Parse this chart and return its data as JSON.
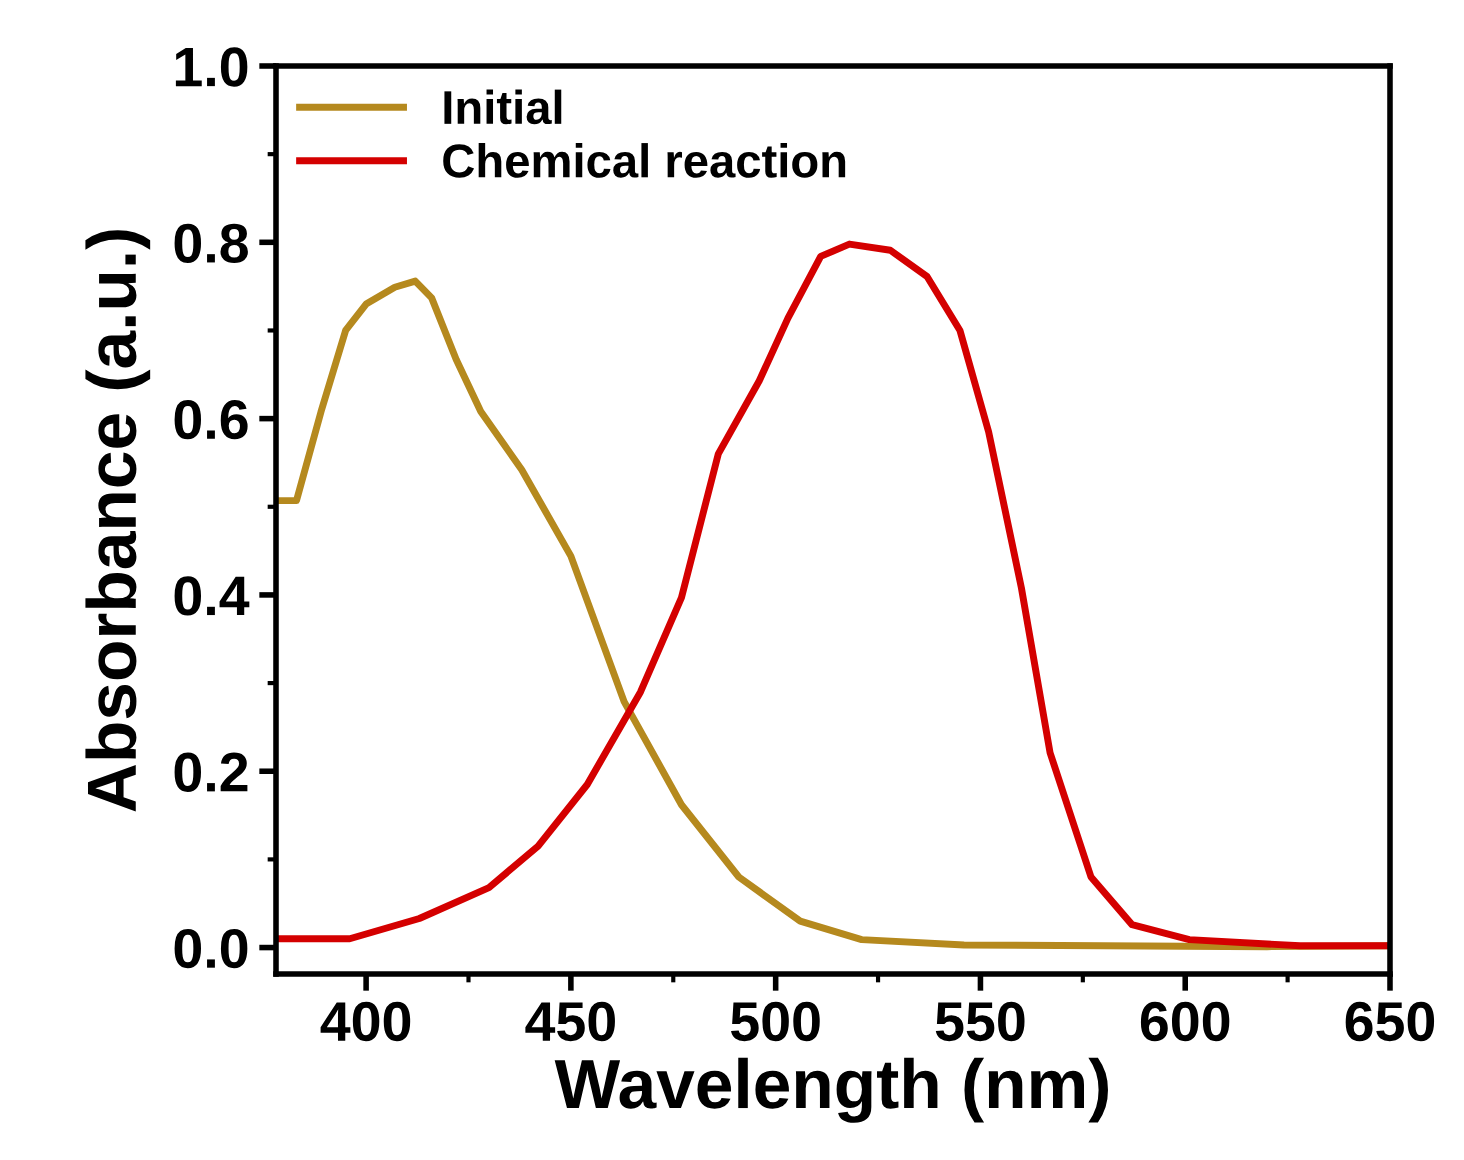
{
  "chart_data": {
    "type": "line",
    "xlabel": "Wavelength (nm)",
    "ylabel": "Absorbance (a.u.)",
    "xlim": [
      378,
      650
    ],
    "ylim": [
      -0.03,
      1.0
    ],
    "xticks": [
      400,
      450,
      500,
      550,
      600,
      650
    ],
    "yticks": [
      {
        "value": 0,
        "label": "0.0"
      },
      0.2,
      0.4,
      0.6,
      0.8,
      {
        "value": 1,
        "label": "1.0"
      }
    ],
    "grid": false,
    "legend": "top left",
    "marker": "none",
    "line_style": "solid",
    "series": [
      {
        "name": "Initial",
        "color": "#b5891e",
        "x": [
          378,
          383,
          389,
          395,
          400,
          407,
          412,
          416,
          422,
          428,
          438,
          450,
          463,
          477,
          491,
          506,
          521,
          546,
          580,
          620,
          650
        ],
        "values": [
          0.507,
          0.507,
          0.608,
          0.7,
          0.73,
          0.749,
          0.756,
          0.737,
          0.667,
          0.608,
          0.542,
          0.444,
          0.279,
          0.162,
          0.08,
          0.03,
          0.009,
          0.003,
          0.002,
          0.001,
          0.002
        ]
      },
      {
        "name": "Chemical reaction",
        "color": "#d40000",
        "x": [
          378,
          396,
          413,
          430,
          442,
          454,
          467,
          477,
          486,
          496,
          503,
          511,
          518,
          528,
          537,
          545,
          552,
          560,
          567,
          577,
          587,
          601,
          628,
          650
        ],
        "values": [
          0.01,
          0.01,
          0.033,
          0.068,
          0.115,
          0.185,
          0.29,
          0.397,
          0.56,
          0.643,
          0.714,
          0.784,
          0.798,
          0.791,
          0.761,
          0.7,
          0.585,
          0.408,
          0.221,
          0.08,
          0.026,
          0.009,
          0.002,
          0.002
        ]
      }
    ]
  }
}
